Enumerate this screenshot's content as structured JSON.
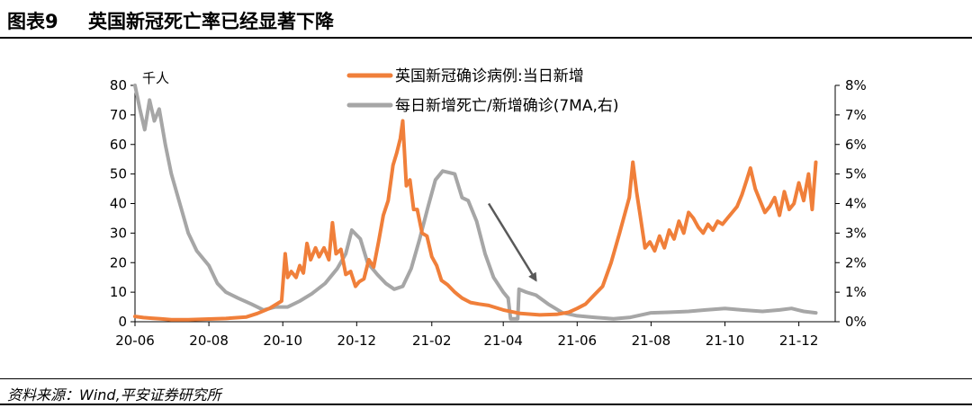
{
  "header": {
    "figure_number": "图表9",
    "title": "英国新冠死亡率已经显著下降"
  },
  "source": "资料来源：Wind,平安证券研究所",
  "colors": {
    "daily_cases": "#F07F3A",
    "death_ratio": "#A6A6A6",
    "arrow": "#595959"
  },
  "chart_data": {
    "type": "line",
    "left_axis": {
      "unit_label": "千人",
      "ylim": [
        0,
        80
      ],
      "ticks": [
        "0",
        "10",
        "20",
        "30",
        "40",
        "50",
        "60",
        "70",
        "80"
      ]
    },
    "right_axis": {
      "ylim": [
        0,
        8
      ],
      "ticks": [
        "0%",
        "1%",
        "2%",
        "3%",
        "4%",
        "5%",
        "6%",
        "7%",
        "8%"
      ]
    },
    "x_axis": {
      "range": [
        "2020-06-01",
        "2021-12-31"
      ],
      "tick_dates": [
        "2020-06-01",
        "2020-08-01",
        "2020-10-01",
        "2020-12-01",
        "2021-02-01",
        "2021-04-01",
        "2021-06-01",
        "2021-08-01",
        "2021-10-01",
        "2021-12-01"
      ],
      "tick_labels": [
        "20-06",
        "20-08",
        "20-10",
        "20-12",
        "21-02",
        "21-04",
        "21-06",
        "21-08",
        "21-10",
        "21-12"
      ]
    },
    "legend": [
      "英国新冠确诊病例:当日新增",
      "每日新增死亡/新增确诊(7MA,右)"
    ],
    "legend_position": "top-center",
    "grid": false,
    "annotations": [
      {
        "type": "arrow",
        "from": [
          "2021-03-20",
          40
        ],
        "to": [
          "2021-04-28",
          14
        ]
      }
    ],
    "series": [
      {
        "name": "英国新冠确诊病例:当日新增",
        "axis": "left",
        "points": [
          [
            "2020-06-01",
            1.8
          ],
          [
            "2020-06-08",
            1.4
          ],
          [
            "2020-06-15",
            1.2
          ],
          [
            "2020-06-22",
            1.0
          ],
          [
            "2020-07-01",
            0.7
          ],
          [
            "2020-07-15",
            0.7
          ],
          [
            "2020-08-01",
            0.9
          ],
          [
            "2020-08-15",
            1.1
          ],
          [
            "2020-09-01",
            1.6
          ],
          [
            "2020-09-10",
            2.8
          ],
          [
            "2020-09-20",
            4.5
          ],
          [
            "2020-09-30",
            7.0
          ],
          [
            "2020-10-03",
            23.0
          ],
          [
            "2020-10-05",
            15.0
          ],
          [
            "2020-10-08",
            17.0
          ],
          [
            "2020-10-12",
            15.0
          ],
          [
            "2020-10-15",
            19.0
          ],
          [
            "2020-10-18",
            16.5
          ],
          [
            "2020-10-21",
            26.5
          ],
          [
            "2020-10-24",
            21.0
          ],
          [
            "2020-10-28",
            25.0
          ],
          [
            "2020-10-31",
            22.0
          ],
          [
            "2020-11-04",
            25.0
          ],
          [
            "2020-11-08",
            21.0
          ],
          [
            "2020-11-11",
            33.5
          ],
          [
            "2020-11-14",
            23.0
          ],
          [
            "2020-11-18",
            24.5
          ],
          [
            "2020-11-22",
            16.0
          ],
          [
            "2020-11-26",
            17.0
          ],
          [
            "2020-11-30",
            12.0
          ],
          [
            "2020-12-03",
            13.5
          ],
          [
            "2020-12-07",
            14.5
          ],
          [
            "2020-12-11",
            21.0
          ],
          [
            "2020-12-15",
            18.5
          ],
          [
            "2020-12-19",
            27.0
          ],
          [
            "2020-12-23",
            36.0
          ],
          [
            "2020-12-27",
            41.0
          ],
          [
            "2020-12-31",
            53.0
          ],
          [
            "2021-01-03",
            57.0
          ],
          [
            "2021-01-06",
            62.0
          ],
          [
            "2021-01-08",
            68.0
          ],
          [
            "2021-01-11",
            46.0
          ],
          [
            "2021-01-14",
            48.0
          ],
          [
            "2021-01-17",
            38.0
          ],
          [
            "2021-01-20",
            38.0
          ],
          [
            "2021-01-24",
            30.0
          ],
          [
            "2021-01-28",
            29.0
          ],
          [
            "2021-02-01",
            22.0
          ],
          [
            "2021-02-05",
            19.0
          ],
          [
            "2021-02-09",
            14.0
          ],
          [
            "2021-02-14",
            12.5
          ],
          [
            "2021-02-20",
            10.0
          ],
          [
            "2021-02-26",
            8.0
          ],
          [
            "2021-03-05",
            6.5
          ],
          [
            "2021-03-12",
            6.0
          ],
          [
            "2021-03-20",
            5.5
          ],
          [
            "2021-04-01",
            4.0
          ],
          [
            "2021-04-15",
            2.8
          ],
          [
            "2021-05-01",
            2.3
          ],
          [
            "2021-05-15",
            2.5
          ],
          [
            "2021-05-25",
            3.2
          ],
          [
            "2021-06-01",
            4.5
          ],
          [
            "2021-06-08",
            6.0
          ],
          [
            "2021-06-15",
            9.0
          ],
          [
            "2021-06-22",
            12.0
          ],
          [
            "2021-06-29",
            20.0
          ],
          [
            "2021-07-06",
            30.0
          ],
          [
            "2021-07-10",
            36.0
          ],
          [
            "2021-07-14",
            42.0
          ],
          [
            "2021-07-17",
            54.0
          ],
          [
            "2021-07-20",
            44.0
          ],
          [
            "2021-07-23",
            36.0
          ],
          [
            "2021-07-27",
            25.0
          ],
          [
            "2021-07-31",
            27.0
          ],
          [
            "2021-08-04",
            24.0
          ],
          [
            "2021-08-08",
            29.0
          ],
          [
            "2021-08-12",
            25.0
          ],
          [
            "2021-08-16",
            31.0
          ],
          [
            "2021-08-20",
            28.0
          ],
          [
            "2021-08-24",
            34.0
          ],
          [
            "2021-08-28",
            30.0
          ],
          [
            "2021-09-01",
            37.0
          ],
          [
            "2021-09-05",
            35.0
          ],
          [
            "2021-09-09",
            32.0
          ],
          [
            "2021-09-13",
            30.0
          ],
          [
            "2021-09-17",
            33.0
          ],
          [
            "2021-09-21",
            31.0
          ],
          [
            "2021-09-25",
            34.0
          ],
          [
            "2021-09-29",
            33.0
          ],
          [
            "2021-10-03",
            35.0
          ],
          [
            "2021-10-07",
            37.0
          ],
          [
            "2021-10-11",
            39.0
          ],
          [
            "2021-10-15",
            43.0
          ],
          [
            "2021-10-19",
            48.0
          ],
          [
            "2021-10-22",
            52.0
          ],
          [
            "2021-10-26",
            45.0
          ],
          [
            "2021-10-30",
            41.0
          ],
          [
            "2021-11-03",
            37.0
          ],
          [
            "2021-11-07",
            39.0
          ],
          [
            "2021-11-11",
            42.0
          ],
          [
            "2021-11-15",
            36.0
          ],
          [
            "2021-11-19",
            44.0
          ],
          [
            "2021-11-23",
            38.0
          ],
          [
            "2021-11-27",
            40.0
          ],
          [
            "2021-12-01",
            47.0
          ],
          [
            "2021-12-05",
            41.0
          ],
          [
            "2021-12-09",
            50.0
          ],
          [
            "2021-12-12",
            38.0
          ],
          [
            "2021-12-15",
            54.0
          ]
        ]
      },
      {
        "name": "每日新增死亡/新增确诊(7MA,右)",
        "axis": "right",
        "points": [
          [
            "2020-06-01",
            8.0
          ],
          [
            "2020-06-05",
            7.2
          ],
          [
            "2020-06-09",
            6.5
          ],
          [
            "2020-06-13",
            7.5
          ],
          [
            "2020-06-17",
            6.8
          ],
          [
            "2020-06-21",
            7.2
          ],
          [
            "2020-06-26",
            6.0
          ],
          [
            "2020-07-01",
            5.0
          ],
          [
            "2020-07-08",
            4.0
          ],
          [
            "2020-07-15",
            3.0
          ],
          [
            "2020-07-22",
            2.4
          ],
          [
            "2020-08-01",
            1.9
          ],
          [
            "2020-08-08",
            1.3
          ],
          [
            "2020-08-15",
            1.0
          ],
          [
            "2020-08-25",
            0.8
          ],
          [
            "2020-09-05",
            0.6
          ],
          [
            "2020-09-15",
            0.4
          ],
          [
            "2020-09-25",
            0.5
          ],
          [
            "2020-10-05",
            0.5
          ],
          [
            "2020-10-15",
            0.7
          ],
          [
            "2020-10-25",
            0.95
          ],
          [
            "2020-11-05",
            1.3
          ],
          [
            "2020-11-15",
            1.8
          ],
          [
            "2020-11-22",
            2.3
          ],
          [
            "2020-11-27",
            3.1
          ],
          [
            "2020-12-04",
            2.8
          ],
          [
            "2020-12-10",
            2.0
          ],
          [
            "2020-12-18",
            1.6
          ],
          [
            "2020-12-25",
            1.3
          ],
          [
            "2021-01-01",
            1.1
          ],
          [
            "2021-01-08",
            1.2
          ],
          [
            "2021-01-15",
            1.8
          ],
          [
            "2021-01-22",
            2.8
          ],
          [
            "2021-01-29",
            3.9
          ],
          [
            "2021-02-04",
            4.8
          ],
          [
            "2021-02-10",
            5.1
          ],
          [
            "2021-02-20",
            5.0
          ],
          [
            "2021-02-26",
            4.2
          ],
          [
            "2021-03-03",
            4.1
          ],
          [
            "2021-03-10",
            3.4
          ],
          [
            "2021-03-17",
            2.3
          ],
          [
            "2021-03-24",
            1.5
          ],
          [
            "2021-04-01",
            1.0
          ],
          [
            "2021-04-05",
            0.8
          ],
          [
            "2021-04-07",
            0.1
          ],
          [
            "2021-04-13",
            0.1
          ],
          [
            "2021-04-14",
            1.1
          ],
          [
            "2021-04-20",
            1.0
          ],
          [
            "2021-04-28",
            0.9
          ],
          [
            "2021-05-08",
            0.6
          ],
          [
            "2021-05-20",
            0.3
          ],
          [
            "2021-06-01",
            0.2
          ],
          [
            "2021-06-15",
            0.15
          ],
          [
            "2021-07-01",
            0.1
          ],
          [
            "2021-07-15",
            0.15
          ],
          [
            "2021-08-01",
            0.3
          ],
          [
            "2021-08-15",
            0.32
          ],
          [
            "2021-09-01",
            0.35
          ],
          [
            "2021-09-15",
            0.4
          ],
          [
            "2021-10-01",
            0.45
          ],
          [
            "2021-10-15",
            0.4
          ],
          [
            "2021-11-01",
            0.35
          ],
          [
            "2021-11-15",
            0.4
          ],
          [
            "2021-11-25",
            0.45
          ],
          [
            "2021-12-05",
            0.35
          ],
          [
            "2021-12-15",
            0.3
          ]
        ]
      }
    ]
  }
}
